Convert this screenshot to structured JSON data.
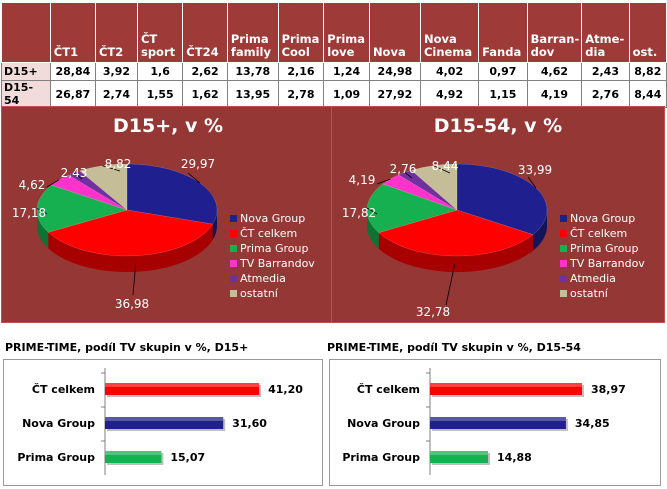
{
  "table": {
    "headers": [
      "",
      "ČT1",
      "ČT2",
      "ČT sport",
      "ČT24",
      "Prima family",
      "Prima Cool",
      "Prima love",
      "Nova",
      "Nova Cinema",
      "Fanda",
      "Barrandov",
      "Atmedia",
      "ost."
    ],
    "header_lines": [
      [
        ""
      ],
      [
        "ČT1"
      ],
      [
        "ČT2"
      ],
      [
        "ČT",
        "sport"
      ],
      [
        "ČT24"
      ],
      [
        "Prima",
        "family"
      ],
      [
        "Prima",
        "Cool"
      ],
      [
        "Prima",
        "love"
      ],
      [
        "Nova"
      ],
      [
        "Nova",
        "Cinema"
      ],
      [
        "Fanda"
      ],
      [
        "Barran-",
        "dov"
      ],
      [
        "Atme-",
        "dia"
      ],
      [
        "ost."
      ]
    ],
    "rows": [
      {
        "label": "D15+",
        "values": [
          "28,84",
          "3,92",
          "1,6",
          "2,62",
          "13,78",
          "2,16",
          "1,24",
          "24,98",
          "4,02",
          "0,97",
          "4,62",
          "2,43",
          "8,82"
        ]
      },
      {
        "label": "D15-54",
        "values": [
          "26,87",
          "2,74",
          "1,55",
          "1,62",
          "13,95",
          "2,78",
          "1,09",
          "27,92",
          "4,92",
          "1,15",
          "4,19",
          "2,76",
          "8,44"
        ]
      }
    ]
  },
  "legend": [
    "Nova Group",
    "ČT celkem",
    "Prima Group",
    "TV Barrandov",
    "Atmedia",
    "ostatní"
  ],
  "colors": {
    "nova": "#1f1f8f",
    "ct": "#ff0000",
    "prima": "#16b050",
    "barrandov": "#ff33cc",
    "atmedia": "#7030a0",
    "ostatni": "#c4bd97",
    "panel": "#953735",
    "header": "#9e3b39"
  },
  "chart_data": [
    {
      "type": "pie",
      "title": "D15+, v %",
      "labels": [
        "Nova Group",
        "ČT celkem",
        "Prima Group",
        "TV Barrandov",
        "Atmedia",
        "ostatní"
      ],
      "values": [
        29.97,
        36.98,
        17.18,
        4.62,
        2.43,
        8.82
      ],
      "value_labels": [
        "29,97",
        "36,98",
        "17,18",
        "4,62",
        "2,43",
        "8,82"
      ],
      "legend_position": "right"
    },
    {
      "type": "pie",
      "title": "D15-54, v %",
      "labels": [
        "Nova Group",
        "ČT celkem",
        "Prima Group",
        "TV Barrandov",
        "Atmedia",
        "ostatní"
      ],
      "values": [
        33.99,
        32.78,
        17.82,
        4.19,
        2.76,
        8.44
      ],
      "value_labels": [
        "33,99",
        "32,78",
        "17,82",
        "4,19",
        "2,76",
        "8,44"
      ],
      "legend_position": "right"
    },
    {
      "type": "bar",
      "orientation": "horizontal",
      "title": "PRIME-TIME, podíl TV skupin v %, D15+",
      "categories": [
        "ČT celkem",
        "Nova Group",
        "Prima Group"
      ],
      "values": [
        41.2,
        31.6,
        15.07
      ],
      "value_labels": [
        "41,20",
        "31,60",
        "15,07"
      ],
      "xlim": [
        0,
        50
      ]
    },
    {
      "type": "bar",
      "orientation": "horizontal",
      "title": "PRIME-TIME, podíl TV skupin v %, D15-54",
      "categories": [
        "ČT celkem",
        "Nova Group",
        "Prima Group"
      ],
      "values": [
        38.97,
        34.85,
        14.88
      ],
      "value_labels": [
        "38,97",
        "34,85",
        "14,88"
      ],
      "xlim": [
        0,
        50
      ]
    }
  ]
}
